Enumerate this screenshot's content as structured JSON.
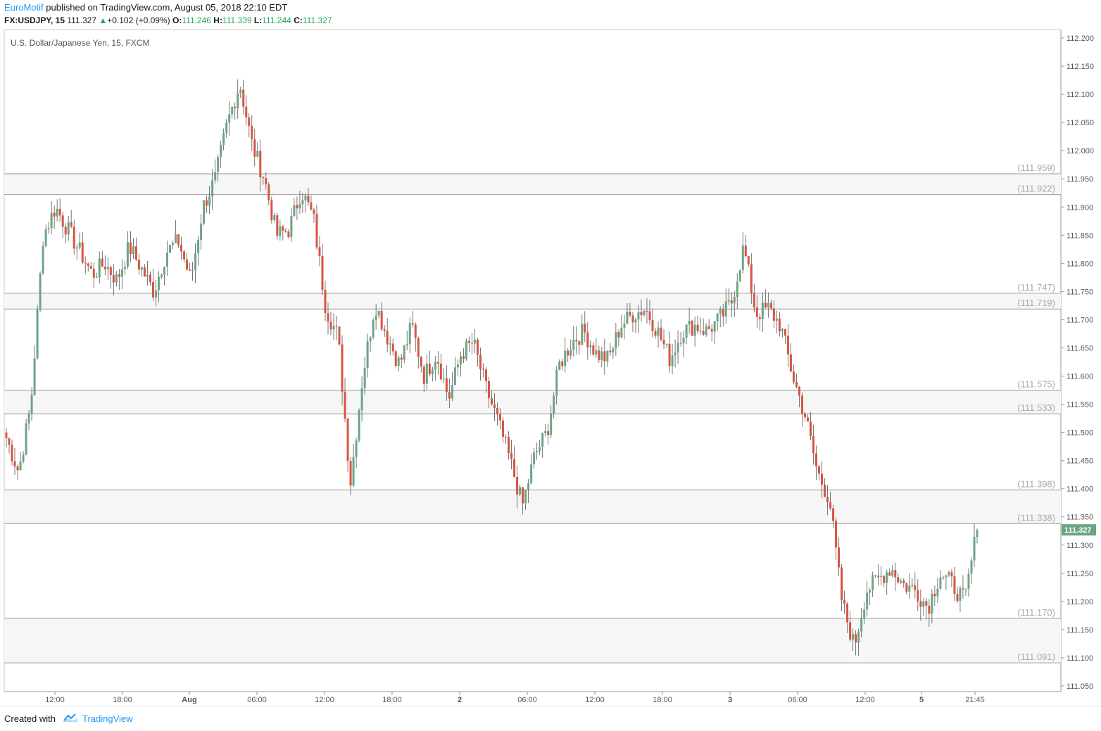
{
  "header": {
    "publisher": "EuroMotif",
    "published_text": "published on TradingView.com, August 05, 2018 22:10 EDT"
  },
  "ticker": {
    "symbol": "FX:USDJPY, 15",
    "last": "111.327",
    "change": "+0.102 (+0.09%)",
    "o_label": "O:",
    "o": "111.246",
    "h_label": "H:",
    "h": "111.339",
    "l_label": "L:",
    "l": "111.244",
    "c_label": "C:",
    "c": "111.327"
  },
  "footer": {
    "created_with": "Created with",
    "brand": "TradingView"
  },
  "colors": {
    "up": "#6ba583",
    "down": "#d75442",
    "zone": "#f6f6f6",
    "zone_line": "#9a9a9a",
    "label": "#aaaaaa",
    "price_tag": "#6ba583"
  },
  "chart_data": {
    "type": "candlestick",
    "title": "U.S. Dollar/Japanese Yen, 15, FXCM",
    "ylim": [
      111.025,
      112.225
    ],
    "y_ticks": [
      "112.200",
      "112.150",
      "112.100",
      "112.050",
      "112.000",
      "111.950",
      "111.900",
      "111.850",
      "111.800",
      "111.750",
      "111.700",
      "111.650",
      "111.600",
      "111.550",
      "111.500",
      "111.450",
      "111.400",
      "111.350",
      "111.300",
      "111.250",
      "111.200",
      "111.150",
      "111.100",
      "111.050"
    ],
    "x_ticks": [
      "12:00",
      "18:00",
      "Aug",
      "06:00",
      "12:00",
      "18:00",
      "2",
      "06:00",
      "12:00",
      "18:00",
      "3",
      "06:00",
      "12:00",
      "5",
      "21:45"
    ],
    "current_price": "111.327",
    "zones": [
      {
        "top": "111.959",
        "bottom": "111.922"
      },
      {
        "top": "111.747",
        "bottom": "111.719"
      },
      {
        "top": "111.575",
        "bottom": "111.533"
      },
      {
        "top": "111.398",
        "bottom": "111.338"
      },
      {
        "top": "111.170",
        "bottom": "111.091"
      }
    ],
    "anchors_close": [
      111.49,
      111.43,
      111.55,
      111.85,
      111.9,
      111.86,
      111.82,
      111.78,
      111.8,
      111.77,
      111.83,
      111.79,
      111.75,
      111.82,
      111.84,
      111.77,
      111.9,
      111.95,
      112.05,
      112.12,
      112.01,
      111.95,
      111.85,
      111.86,
      111.93,
      111.88,
      111.72,
      111.67,
      111.41,
      111.6,
      111.73,
      111.67,
      111.62,
      111.69,
      111.6,
      111.64,
      111.56,
      111.64,
      111.66,
      111.58,
      111.52,
      111.45,
      111.37,
      111.46,
      111.5,
      111.62,
      111.66,
      111.68,
      111.64,
      111.63,
      111.69,
      111.71,
      111.72,
      111.68,
      111.63,
      111.68,
      111.69,
      111.68,
      111.7,
      111.73,
      111.83,
      111.71,
      111.72,
      111.69,
      111.6,
      111.53,
      111.43,
      111.38,
      111.2,
      111.12,
      111.22,
      111.24,
      111.26,
      111.23,
      111.22,
      111.19,
      111.25,
      111.23,
      111.2,
      111.33
    ]
  }
}
